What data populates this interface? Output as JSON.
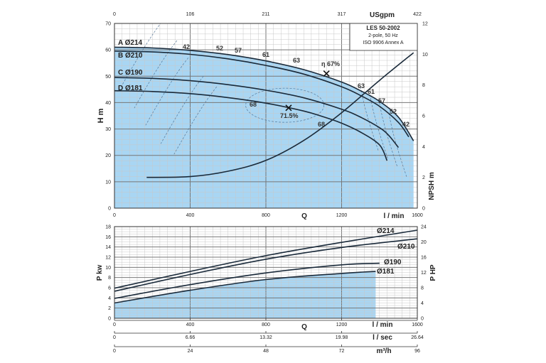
{
  "chart_data": [
    {
      "type": "line",
      "title": "LES 50-2002",
      "info_box": [
        "LES 50-2002",
        "2-pole, 50 Hz",
        "ISO 9906 Annex A"
      ],
      "xlabel": "Q",
      "x_unit": "l / min",
      "xlim": [
        0,
        1600
      ],
      "x_ticks": [
        "0",
        "400",
        "800",
        "1200",
        "1600"
      ],
      "top_axis_unit": "USgpm",
      "top_axis_ticks": [
        "0",
        "106",
        "211",
        "317",
        "422"
      ],
      "ylabel": "H m",
      "ylim": [
        0,
        70
      ],
      "y_ticks": [
        "0",
        "10",
        "20",
        "30",
        "40",
        "50",
        "60",
        "70"
      ],
      "y2label": "NPSH m",
      "y2lim": [
        0,
        12
      ],
      "y2_ticks": [
        "0",
        "2",
        "4",
        "6",
        "8",
        "10",
        "12"
      ],
      "series": [
        {
          "name": "A Ø214",
          "label": "A Ø214",
          "x": [
            0,
            200,
            400,
            600,
            800,
            1000,
            1200,
            1300,
            1400,
            1500,
            1580
          ],
          "y": [
            61,
            60.7,
            59.8,
            58.2,
            55.8,
            52.5,
            47.8,
            44.5,
            40.5,
            34.5,
            25.5
          ]
        },
        {
          "name": "B Ø210",
          "label": "B Ø210",
          "x": [
            0,
            200,
            400,
            600,
            800,
            1000,
            1200,
            1300,
            1400,
            1500,
            1555
          ],
          "y": [
            59.5,
            59.2,
            58.3,
            56.6,
            54.1,
            50.8,
            46.0,
            42.7,
            38.6,
            32.5,
            27
          ]
        },
        {
          "name": "C Ø190",
          "label": "C Ø190",
          "x": [
            0,
            200,
            400,
            600,
            800,
            1000,
            1200,
            1300,
            1400,
            1450,
            1500
          ],
          "y": [
            49.5,
            49.2,
            48.3,
            46.8,
            44.7,
            41.8,
            37.5,
            34.5,
            30.5,
            27.5,
            23
          ]
        },
        {
          "name": "D Ø181",
          "label": "D Ø181",
          "x": [
            0,
            200,
            400,
            600,
            800,
            1000,
            1100,
            1200,
            1300,
            1400,
            1440
          ],
          "y": [
            44.5,
            44.2,
            43.4,
            41.9,
            39.8,
            36.8,
            34.7,
            32.2,
            28.8,
            24,
            18
          ]
        }
      ],
      "npsh_curve": {
        "name": "NPSH",
        "x": [
          170,
          400,
          600,
          800,
          1000,
          1200,
          1400,
          1580
        ],
        "y": [
          2,
          2.05,
          2.4,
          3.1,
          4.4,
          6.2,
          8.3,
          10.1
        ]
      },
      "efficiency_labels": [
        "42",
        "52",
        "57",
        "61",
        "63",
        "63",
        "61",
        "57",
        "52",
        "42",
        "68",
        "68"
      ],
      "best_efficiency_points": [
        {
          "label": "η 67%",
          "x": 1120,
          "y": 51
        },
        {
          "label": "71.5%",
          "x": 920,
          "y": 38
        }
      ]
    },
    {
      "type": "line",
      "xlabel": "Q",
      "xlim": [
        0,
        1600
      ],
      "x_ticks": [
        "0",
        "400",
        "800",
        "1200",
        "1600"
      ],
      "ylabel": "P kw",
      "ylim": [
        0,
        18
      ],
      "y_ticks": [
        "0",
        "2",
        "4",
        "6",
        "8",
        "10",
        "12",
        "14",
        "16",
        "18"
      ],
      "y2label": "P HP",
      "y2lim": [
        0,
        24
      ],
      "y2_ticks": [
        "0",
        "4",
        "8",
        "12",
        "16",
        "20",
        "24"
      ],
      "series": [
        {
          "name": "Ø214",
          "label": "Ø214",
          "x": [
            0,
            400,
            800,
            1200,
            1600
          ],
          "y": [
            5.9,
            9.2,
            12.3,
            14.9,
            17.3
          ]
        },
        {
          "name": "Ø210",
          "label": "Ø210",
          "x": [
            0,
            400,
            800,
            1200,
            1600
          ],
          "y": [
            5.3,
            8.6,
            11.6,
            13.9,
            15.6
          ]
        },
        {
          "name": "Ø190",
          "label": "Ø190",
          "x": [
            0,
            400,
            800,
            1200,
            1400
          ],
          "y": [
            3.9,
            6.6,
            8.9,
            10.5,
            10.8
          ]
        },
        {
          "name": "Ø181",
          "label": "Ø181",
          "x": [
            0,
            400,
            800,
            1200,
            1380
          ],
          "y": [
            3.0,
            5.5,
            7.6,
            8.8,
            9.2
          ]
        }
      ],
      "bottom_axes": [
        {
          "unit": "l / min",
          "ticks": [
            "0",
            "400",
            "800",
            "1200",
            "1600"
          ]
        },
        {
          "unit": "l / sec",
          "ticks": [
            "0",
            "6.66",
            "13.32",
            "19.98",
            "26.64"
          ]
        },
        {
          "unit": "m³/h",
          "ticks": [
            "0",
            "24",
            "48",
            "72",
            "96"
          ]
        }
      ]
    }
  ],
  "colors": {
    "fill": "#a9d6f3",
    "grid_minor": "#c8c8c8",
    "grid_major": "#777777",
    "curve": "#1a2a3a"
  }
}
